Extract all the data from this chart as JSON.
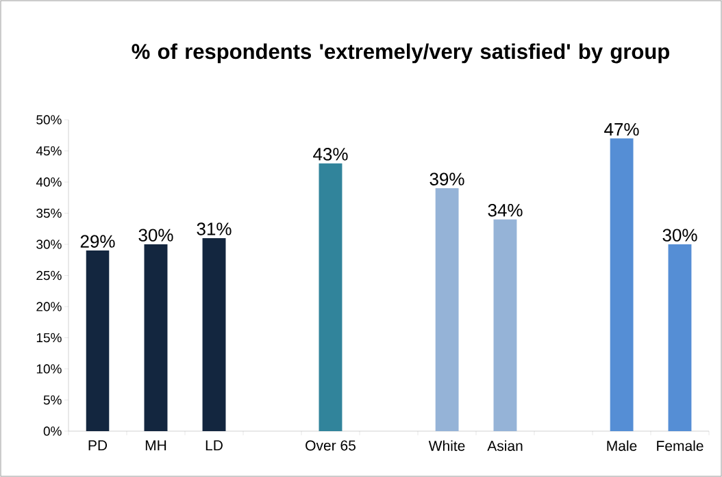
{
  "chart_data": {
    "type": "bar",
    "title": "% of respondents 'extremely/very satisfied' by group",
    "categories": [
      "PD",
      "MH",
      "LD",
      null,
      "Over 65",
      null,
      "White",
      "Asian",
      null,
      "Male",
      "Female"
    ],
    "values": [
      29,
      30,
      31,
      null,
      43,
      null,
      39,
      34,
      null,
      47,
      30
    ],
    "colors": [
      "#13263f",
      "#13263f",
      "#13263f",
      null,
      "#31849b",
      null,
      "#95b3d7",
      "#95b3d7",
      null,
      "#558ed5",
      "#558ed5"
    ],
    "value_labels": [
      "29%",
      "30%",
      "31%",
      null,
      "43%",
      null,
      "39%",
      "34%",
      null,
      "47%",
      "30%"
    ],
    "ylim": [
      0,
      50
    ],
    "yticks": [
      {
        "value": 0,
        "label": "0%"
      },
      {
        "value": 5,
        "label": "5%"
      },
      {
        "value": 10,
        "label": "10%"
      },
      {
        "value": 15,
        "label": "15%"
      },
      {
        "value": 20,
        "label": "20%"
      },
      {
        "value": 25,
        "label": "25%"
      },
      {
        "value": 30,
        "label": "30%"
      },
      {
        "value": 35,
        "label": "35%"
      },
      {
        "value": 40,
        "label": "40%"
      },
      {
        "value": 45,
        "label": "45%"
      },
      {
        "value": 50,
        "label": "50%"
      }
    ],
    "grid": false
  }
}
